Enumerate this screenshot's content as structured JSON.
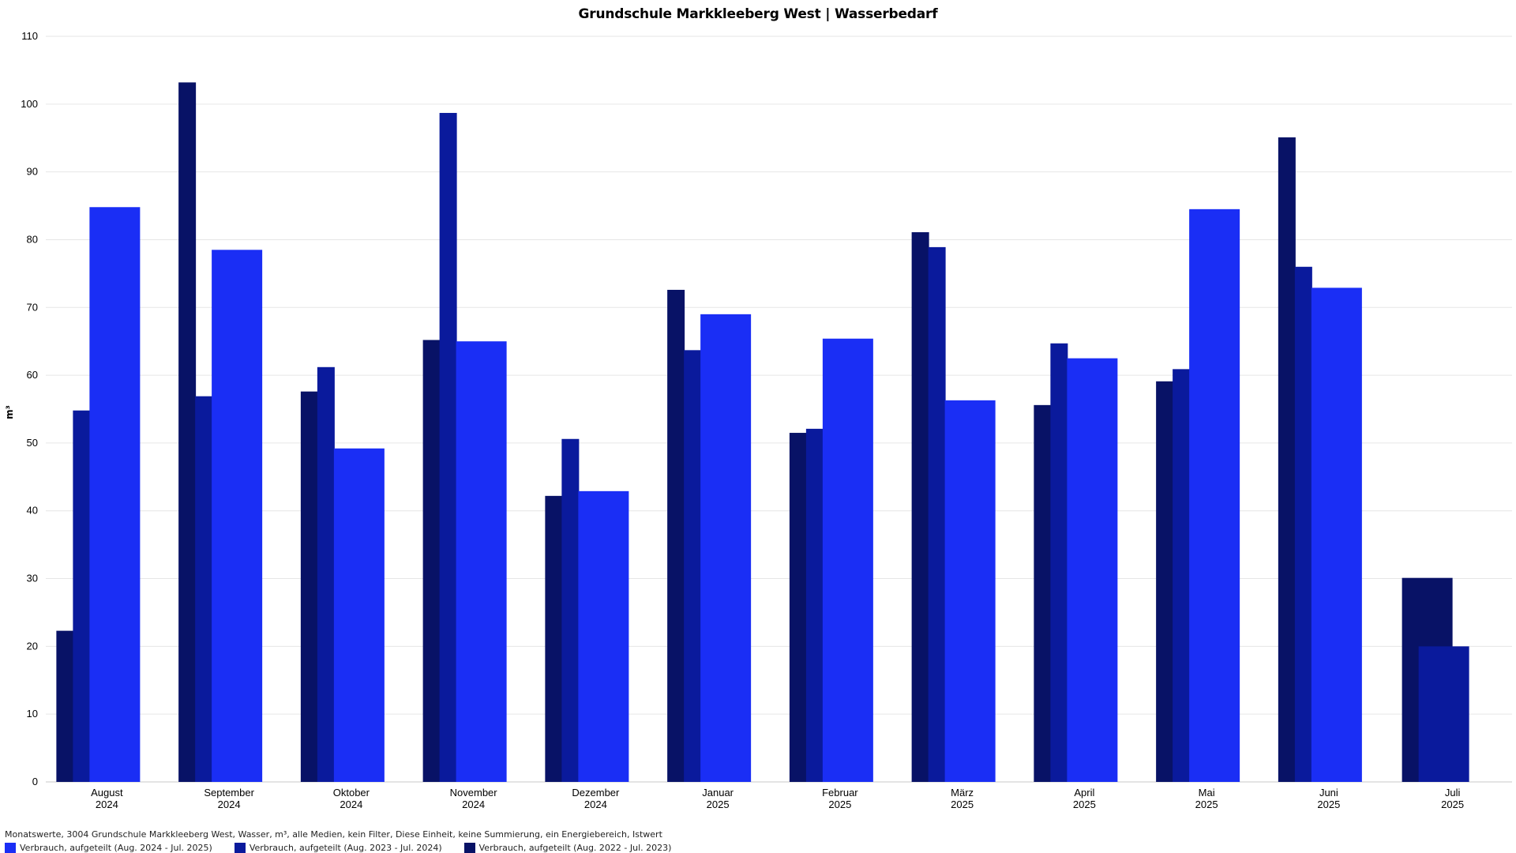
{
  "chart_data": {
    "type": "bar",
    "title": "Grundschule Markkleeberg West | Wasserbedarf",
    "ylabel": "m³",
    "xlabel": "",
    "ylim": [
      0,
      110
    ],
    "yticks": [
      0,
      10,
      20,
      30,
      40,
      50,
      60,
      70,
      80,
      90,
      100,
      110
    ],
    "grid": true,
    "legend_position": "bottom-left",
    "categories": [
      {
        "month": "August",
        "year": "2024"
      },
      {
        "month": "September",
        "year": "2024"
      },
      {
        "month": "Oktober",
        "year": "2024"
      },
      {
        "month": "November",
        "year": "2024"
      },
      {
        "month": "Dezember",
        "year": "2024"
      },
      {
        "month": "Januar",
        "year": "2025"
      },
      {
        "month": "Februar",
        "year": "2025"
      },
      {
        "month": "März",
        "year": "2025"
      },
      {
        "month": "April",
        "year": "2025"
      },
      {
        "month": "Mai",
        "year": "2025"
      },
      {
        "month": "Juni",
        "year": "2025"
      },
      {
        "month": "Juli",
        "year": "2025"
      }
    ],
    "series": [
      {
        "name": "Verbrauch, aufgeteilt (Aug. 2022 - Jul. 2023)",
        "color": "#081266",
        "values": [
          22.3,
          103.2,
          57.6,
          65.2,
          42.2,
          72.6,
          51.5,
          81.1,
          55.6,
          59.1,
          95.1,
          30.1
        ]
      },
      {
        "name": "Verbrauch, aufgeteilt (Aug. 2023 - Jul. 2024)",
        "color": "#0a1a9c",
        "values": [
          54.8,
          56.9,
          61.2,
          98.7,
          50.6,
          63.7,
          52.1,
          78.9,
          64.7,
          60.9,
          76.0,
          20.0
        ]
      },
      {
        "name": "Verbrauch, aufgeteilt (Aug. 2024 - Jul. 2025)",
        "color": "#1a2ef5",
        "values": [
          84.8,
          78.5,
          49.2,
          65.0,
          42.9,
          69.0,
          65.4,
          56.3,
          62.5,
          84.5,
          72.9,
          null
        ]
      }
    ]
  },
  "footer_text": "Monatswerte, 3004 Grundschule Markkleeberg West, Wasser, m³, alle Medien, kein Filter, Diese Einheit, keine Summierung, ein Energiebereich, Istwert",
  "legend": [
    {
      "label": "Verbrauch, aufgeteilt (Aug. 2024 - Jul. 2025)",
      "color": "#1a2ef5"
    },
    {
      "label": "Verbrauch, aufgeteilt (Aug. 2023 - Jul. 2024)",
      "color": "#0a1a9c"
    },
    {
      "label": "Verbrauch, aufgeteilt (Aug. 2022 - Jul. 2023)",
      "color": "#081266"
    }
  ]
}
